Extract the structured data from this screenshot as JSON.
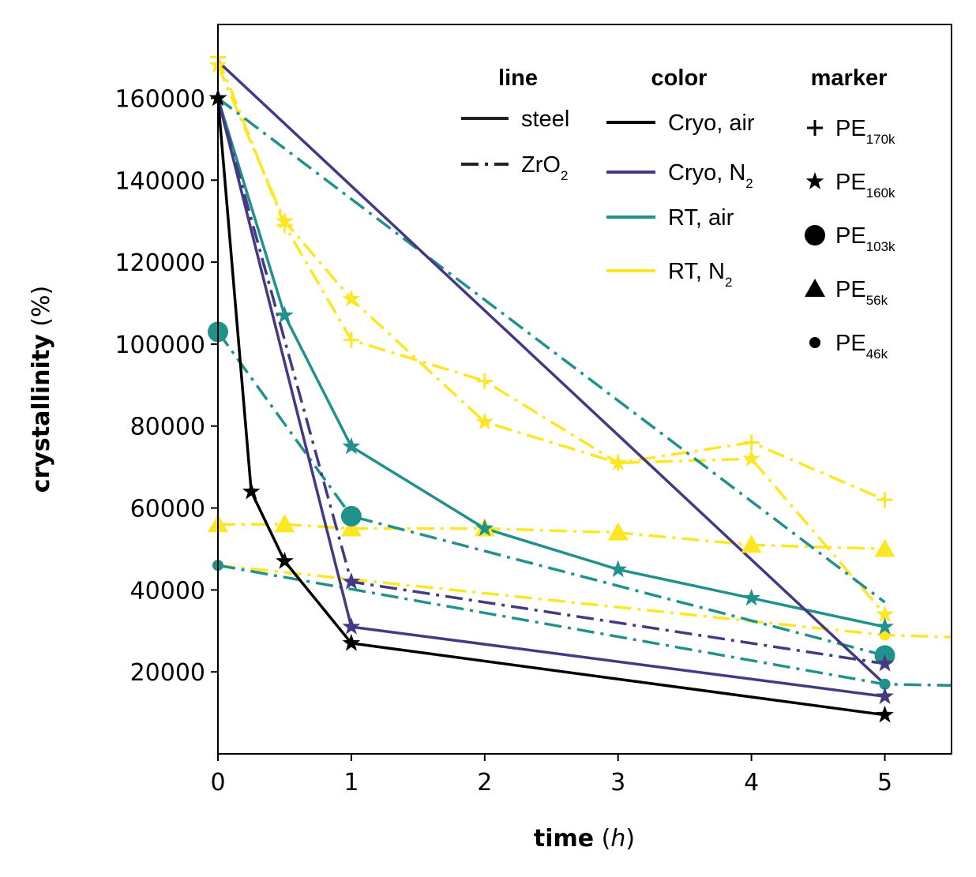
{
  "chart_data": {
    "type": "line",
    "xlabel": {
      "bold": "time",
      "rest_open": " (",
      "italic": "h",
      "rest_close": ")"
    },
    "ylabel": {
      "bold": "crystallinity",
      "rest": " (%)"
    },
    "xlim": [
      0,
      5.5
    ],
    "ylim": [
      0,
      178000
    ],
    "xticks": [
      "0",
      "1",
      "2",
      "3",
      "4",
      "5"
    ],
    "yticks": [
      "20000",
      "40000",
      "60000",
      "80000",
      "100000",
      "120000",
      "140000",
      "160000"
    ],
    "grid": false,
    "legend_placement": "top-right",
    "legend": {
      "line": {
        "header": "line",
        "entries": [
          {
            "label": "steel",
            "sub": "",
            "style": "solid"
          },
          {
            "label": "ZrO",
            "sub": "2",
            "style": "dashdot"
          }
        ]
      },
      "color": {
        "header": "color",
        "entries": [
          {
            "label": "Cryo, air",
            "sub": "",
            "color": "#000000"
          },
          {
            "label": "Cryo, N",
            "sub": "2",
            "color": "#443983"
          },
          {
            "label": "RT, air",
            "sub": "",
            "color": "#21918c"
          },
          {
            "label": "RT, N",
            "sub": "2",
            "color": "#fde725"
          }
        ]
      },
      "marker": {
        "header": "marker",
        "entries": [
          {
            "label": "PE",
            "sub": "170k",
            "marker": "plus"
          },
          {
            "label": "PE",
            "sub": "160k",
            "marker": "star"
          },
          {
            "label": "PE",
            "sub": "103k",
            "marker": "circle"
          },
          {
            "label": "PE",
            "sub": "56k",
            "marker": "triangle"
          },
          {
            "label": "PE",
            "sub": "46k",
            "marker": "dot"
          }
        ]
      }
    },
    "series": [
      {
        "color": "#fde725",
        "style": "dashdot",
        "marker": "plus",
        "x": [
          0,
          0.5,
          1,
          2,
          3,
          4,
          5
        ],
        "y": [
          170000,
          129000,
          101000,
          91000,
          71000,
          76000,
          62000
        ]
      },
      {
        "color": "#fde725",
        "style": "dashdot",
        "marker": "star",
        "x": [
          0,
          0.5,
          1,
          2,
          3,
          4,
          5
        ],
        "y": [
          168000,
          130000,
          111000,
          81000,
          71000,
          72000,
          34000
        ]
      },
      {
        "color": "#fde725",
        "style": "dashdot",
        "marker": "triangle",
        "x": [
          0,
          0.5,
          1,
          2,
          3,
          4,
          5
        ],
        "y": [
          56000,
          56000,
          55000,
          55000,
          54000,
          51000,
          50000
        ]
      },
      {
        "color": "#fde725",
        "style": "dashdot",
        "marker": "dot",
        "x": [
          0,
          5,
          5.5
        ],
        "y": [
          46000,
          29000,
          28500
        ]
      },
      {
        "color": "#21918c",
        "style": "dashdot",
        "marker": "none",
        "x": [
          0,
          5
        ],
        "y": [
          160000,
          37000
        ]
      },
      {
        "color": "#21918c",
        "style": "solid",
        "marker": "star",
        "x": [
          0,
          0.5,
          1,
          2,
          3,
          4,
          5
        ],
        "y": [
          160000,
          107000,
          75000,
          55000,
          45000,
          38000,
          31000
        ]
      },
      {
        "color": "#21918c",
        "style": "dashdot",
        "marker": "circle",
        "x": [
          0,
          1,
          5
        ],
        "y": [
          103000,
          58000,
          24000
        ]
      },
      {
        "color": "#21918c",
        "style": "dashdot",
        "marker": "dot",
        "x": [
          0,
          5,
          5.5
        ],
        "y": [
          46000,
          17000,
          16700
        ]
      },
      {
        "color": "#443983",
        "style": "solid",
        "marker": "none",
        "x": [
          0,
          5
        ],
        "y": [
          169000,
          17000
        ]
      },
      {
        "color": "#443983",
        "style": "solid",
        "marker": "star",
        "x": [
          0,
          1,
          5
        ],
        "y": [
          160000,
          31000,
          14000
        ]
      },
      {
        "color": "#443983",
        "style": "dashdot",
        "marker": "star",
        "x": [
          0,
          1,
          5
        ],
        "y": [
          160000,
          42000,
          22000
        ]
      },
      {
        "color": "#000000",
        "style": "solid",
        "marker": "star",
        "x": [
          0,
          0.25,
          0.5,
          1,
          5
        ],
        "y": [
          160000,
          64000,
          47000,
          27000,
          9500
        ]
      }
    ]
  }
}
